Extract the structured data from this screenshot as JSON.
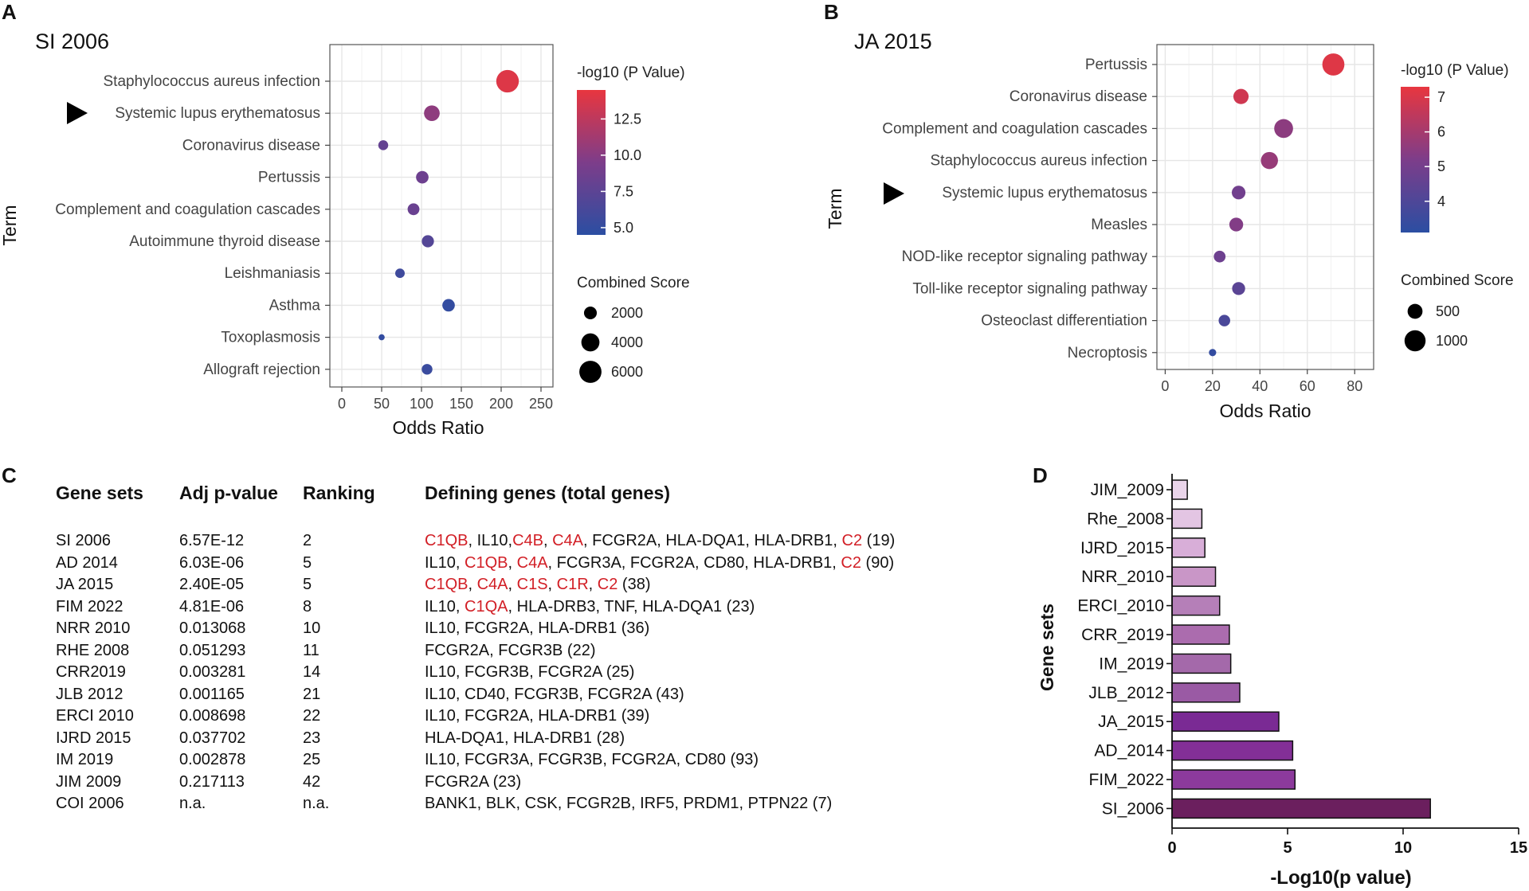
{
  "panels": {
    "A": {
      "letter": "A",
      "title": "SI 2006",
      "y_axis_title": "Term",
      "x_axis_title": "Odds Ratio",
      "legend_color_title": "-log10 (P Value)",
      "legend_size_title": "Combined Score",
      "marked_term": "Systemic lupus erythematosus"
    },
    "B": {
      "letter": "B",
      "title": "JA 2015",
      "y_axis_title": "Term",
      "x_axis_title": "Odds Ratio",
      "legend_color_title": "-log10 (P Value)",
      "legend_size_title": "Combined Score",
      "marked_term": "Systemic lupus erythematosus"
    },
    "C": {
      "letter": "C"
    },
    "D": {
      "letter": "D"
    }
  },
  "chart_data": [
    {
      "id": "A",
      "type": "scatter",
      "title": "SI 2006",
      "xlabel": "Odds Ratio",
      "ylabel": "Term",
      "xlim": [
        -15,
        265
      ],
      "xticks": [
        0,
        50,
        100,
        150,
        200,
        250
      ],
      "color_scale": {
        "min": 4.5,
        "max": 14.5,
        "ticks": [
          5.0,
          7.5,
          10.0,
          12.5
        ],
        "tick_labels": [
          "5.0",
          "7.5",
          "10.0",
          "12.5"
        ],
        "low_color": "#2b4ea2",
        "mid_color": "#7d3d8a",
        "high_color": "#e8363f"
      },
      "size_legend": {
        "values": [
          2000,
          4000,
          6000
        ],
        "labels": [
          "2000",
          "4000",
          "6000"
        ]
      },
      "size_max_value": 6500,
      "points": [
        {
          "term": "Staphylococcus aureus infection",
          "odds_ratio": 208,
          "neglog10p": 14.0,
          "combined_score": 6200
        },
        {
          "term": "Systemic lupus erythematosus",
          "odds_ratio": 113,
          "neglog10p": 10.3,
          "combined_score": 3000
        },
        {
          "term": "Coronavirus disease",
          "odds_ratio": 52,
          "neglog10p": 8.0,
          "combined_score": 1200
        },
        {
          "term": "Pertussis",
          "odds_ratio": 101,
          "neglog10p": 8.5,
          "combined_score": 1900
        },
        {
          "term": "Complement and coagulation cascades",
          "odds_ratio": 90,
          "neglog10p": 8.3,
          "combined_score": 1700
        },
        {
          "term": "Autoimmune thyroid disease",
          "odds_ratio": 108,
          "neglog10p": 7.0,
          "combined_score": 1800
        },
        {
          "term": "Leishmaniasis",
          "odds_ratio": 73,
          "neglog10p": 5.7,
          "combined_score": 1100
        },
        {
          "term": "Asthma",
          "odds_ratio": 134,
          "neglog10p": 5.0,
          "combined_score": 1900
        },
        {
          "term": "Toxoplasmosis",
          "odds_ratio": 50,
          "neglog10p": 5.0,
          "combined_score": 450
        },
        {
          "term": "Allograft rejection",
          "odds_ratio": 107,
          "neglog10p": 5.4,
          "combined_score": 1400
        }
      ]
    },
    {
      "id": "B",
      "type": "scatter",
      "title": "JA 2015",
      "xlabel": "Odds Ratio",
      "ylabel": "Term",
      "xlim": [
        -3.5,
        88
      ],
      "xticks": [
        0,
        20,
        40,
        60,
        80
      ],
      "color_scale": {
        "min": 3.1,
        "max": 7.3,
        "ticks": [
          4,
          5,
          6,
          7
        ],
        "tick_labels": [
          "4",
          "5",
          "6",
          "7"
        ],
        "low_color": "#2b4ea2",
        "mid_color": "#7d3d8a",
        "high_color": "#e8363f"
      },
      "size_legend": {
        "values": [
          500,
          1000
        ],
        "labels": [
          "500",
          "1000"
        ]
      },
      "size_max_value": 1200,
      "points": [
        {
          "term": "Pertussis",
          "odds_ratio": 71,
          "neglog10p": 7.1,
          "combined_score": 1100
        },
        {
          "term": "Coronavirus disease",
          "odds_ratio": 32,
          "neglog10p": 6.8,
          "combined_score": 520
        },
        {
          "term": "Complement and coagulation cascades",
          "odds_ratio": 50,
          "neglog10p": 5.5,
          "combined_score": 800
        },
        {
          "term": "Staphylococcus aureus infection",
          "odds_ratio": 44,
          "neglog10p": 5.7,
          "combined_score": 660
        },
        {
          "term": "Systemic lupus erythematosus",
          "odds_ratio": 31,
          "neglog10p": 4.9,
          "combined_score": 420
        },
        {
          "term": "Measles",
          "odds_ratio": 30,
          "neglog10p": 5.3,
          "combined_score": 430
        },
        {
          "term": "NOD-like receptor signaling pathway",
          "odds_ratio": 23,
          "neglog10p": 4.8,
          "combined_score": 310
        },
        {
          "term": "Toll-like receptor signaling pathway",
          "odds_ratio": 31,
          "neglog10p": 4.3,
          "combined_score": 380
        },
        {
          "term": "Osteoclast differentiation",
          "odds_ratio": 25,
          "neglog10p": 3.9,
          "combined_score": 300
        },
        {
          "term": "Necroptosis",
          "odds_ratio": 20,
          "neglog10p": 3.3,
          "combined_score": 120
        }
      ]
    },
    {
      "id": "C",
      "type": "table",
      "columns": [
        "Gene sets",
        "Adj p-value",
        "Ranking",
        "Defining genes (total genes)"
      ],
      "highlight_color": "#d21f26",
      "rows": [
        {
          "gene_set": "SI 2006",
          "adj_p": "6.57E-12",
          "ranking": "2",
          "genes": [
            {
              "t": "C1QB",
              "hl": true
            },
            {
              "t": ", IL10,"
            },
            {
              "t": "C4B",
              "hl": true
            },
            {
              "t": ", "
            },
            {
              "t": "C4A",
              "hl": true
            },
            {
              "t": ", FCGR2A, HLA-DQA1, HLA-DRB1, "
            },
            {
              "t": "C2",
              "hl": true
            },
            {
              "t": " (19)"
            }
          ]
        },
        {
          "gene_set": "AD 2014",
          "adj_p": "6.03E-06",
          "ranking": "5",
          "genes": [
            {
              "t": "IL10, "
            },
            {
              "t": "C1QB",
              "hl": true
            },
            {
              "t": ", "
            },
            {
              "t": "C4A",
              "hl": true
            },
            {
              "t": ", FCGR3A, FCGR2A, CD80, HLA-DRB1, "
            },
            {
              "t": "C2",
              "hl": true
            },
            {
              "t": " (90)"
            }
          ]
        },
        {
          "gene_set": "JA 2015",
          "adj_p": "2.40E-05",
          "ranking": "5",
          "genes": [
            {
              "t": "C1QB",
              "hl": true
            },
            {
              "t": ", "
            },
            {
              "t": "C4A",
              "hl": true
            },
            {
              "t": ", "
            },
            {
              "t": "C1S",
              "hl": true
            },
            {
              "t": ", "
            },
            {
              "t": "C1R",
              "hl": true
            },
            {
              "t": ", "
            },
            {
              "t": "C2",
              "hl": true
            },
            {
              "t": " (38)"
            }
          ]
        },
        {
          "gene_set": "FIM 2022",
          "adj_p": "4.81E-06",
          "ranking": "8",
          "genes": [
            {
              "t": "IL10, "
            },
            {
              "t": "C1QA",
              "hl": true
            },
            {
              "t": ", HLA-DRB3, TNF, HLA-DQA1 (23)"
            }
          ]
        },
        {
          "gene_set": "NRR 2010",
          "adj_p": "0.013068",
          "ranking": "10",
          "genes": [
            {
              "t": "IL10, FCGR2A, HLA-DRB1 (36)"
            }
          ]
        },
        {
          "gene_set": "RHE 2008",
          "adj_p": "0.051293",
          "ranking": "11",
          "genes": [
            {
              "t": "FCGR2A, FCGR3B (22)"
            }
          ]
        },
        {
          "gene_set": "CRR2019",
          "adj_p": "0.003281",
          "ranking": "14",
          "genes": [
            {
              "t": "IL10, FCGR3B, FCGR2A (25)"
            }
          ]
        },
        {
          "gene_set": "JLB 2012",
          "adj_p": "0.001165",
          "ranking": "21",
          "genes": [
            {
              "t": "IL10, CD40, FCGR3B, FCGR2A (43)"
            }
          ]
        },
        {
          "gene_set": "ERCI 2010",
          "adj_p": "0.008698",
          "ranking": "22",
          "genes": [
            {
              "t": "IL10, FCGR2A, HLA-DRB1 (39)"
            }
          ]
        },
        {
          "gene_set": "IJRD 2015",
          "adj_p": "0.037702",
          "ranking": "23",
          "genes": [
            {
              "t": "HLA-DQA1, HLA-DRB1 (28)"
            }
          ]
        },
        {
          "gene_set": "IM 2019",
          "adj_p": "0.002878",
          "ranking": "25",
          "genes": [
            {
              "t": "IL10, FCGR3A, FCGR3B, FCGR2A, CD80 (93)"
            }
          ]
        },
        {
          "gene_set": "JIM 2009",
          "adj_p": "0.217113",
          "ranking": "42",
          "genes": [
            {
              "t": "FCGR2A (23)"
            }
          ]
        },
        {
          "gene_set": "COI 2006",
          "adj_p": "n.a.",
          "ranking": "n.a.",
          "genes": [
            {
              "t": "BANK1, BLK, CSK, FCGR2B, IRF5, PRDM1, PTPN22 (7)"
            }
          ]
        }
      ]
    },
    {
      "id": "D",
      "type": "bar",
      "orientation": "horizontal",
      "xlabel": "-Log10(p value)",
      "ylabel": "Gene sets",
      "xlim": [
        0,
        15
      ],
      "xticks": [
        0,
        5,
        10,
        15
      ],
      "categories": [
        "JIM_2009",
        "Rhe_2008",
        "IJRD_2015",
        "NRR_2010",
        "ERCI_2010",
        "CRR_2019",
        "IM_2019",
        "JLB_2012",
        "JA_2015",
        "AD_2014",
        "FIM_2022",
        "SI_2006"
      ],
      "values": [
        0.66,
        1.29,
        1.42,
        1.88,
        2.06,
        2.48,
        2.54,
        2.93,
        4.62,
        5.22,
        5.32,
        11.18
      ],
      "colors": [
        "#ead4ea",
        "#e3c5e3",
        "#d8aed8",
        "#c996c7",
        "#b57fb8",
        "#ab6cae",
        "#a469aa",
        "#9a5aa4",
        "#7a2a94",
        "#832f97",
        "#8c3a9c",
        "#6b1f5e"
      ]
    }
  ]
}
